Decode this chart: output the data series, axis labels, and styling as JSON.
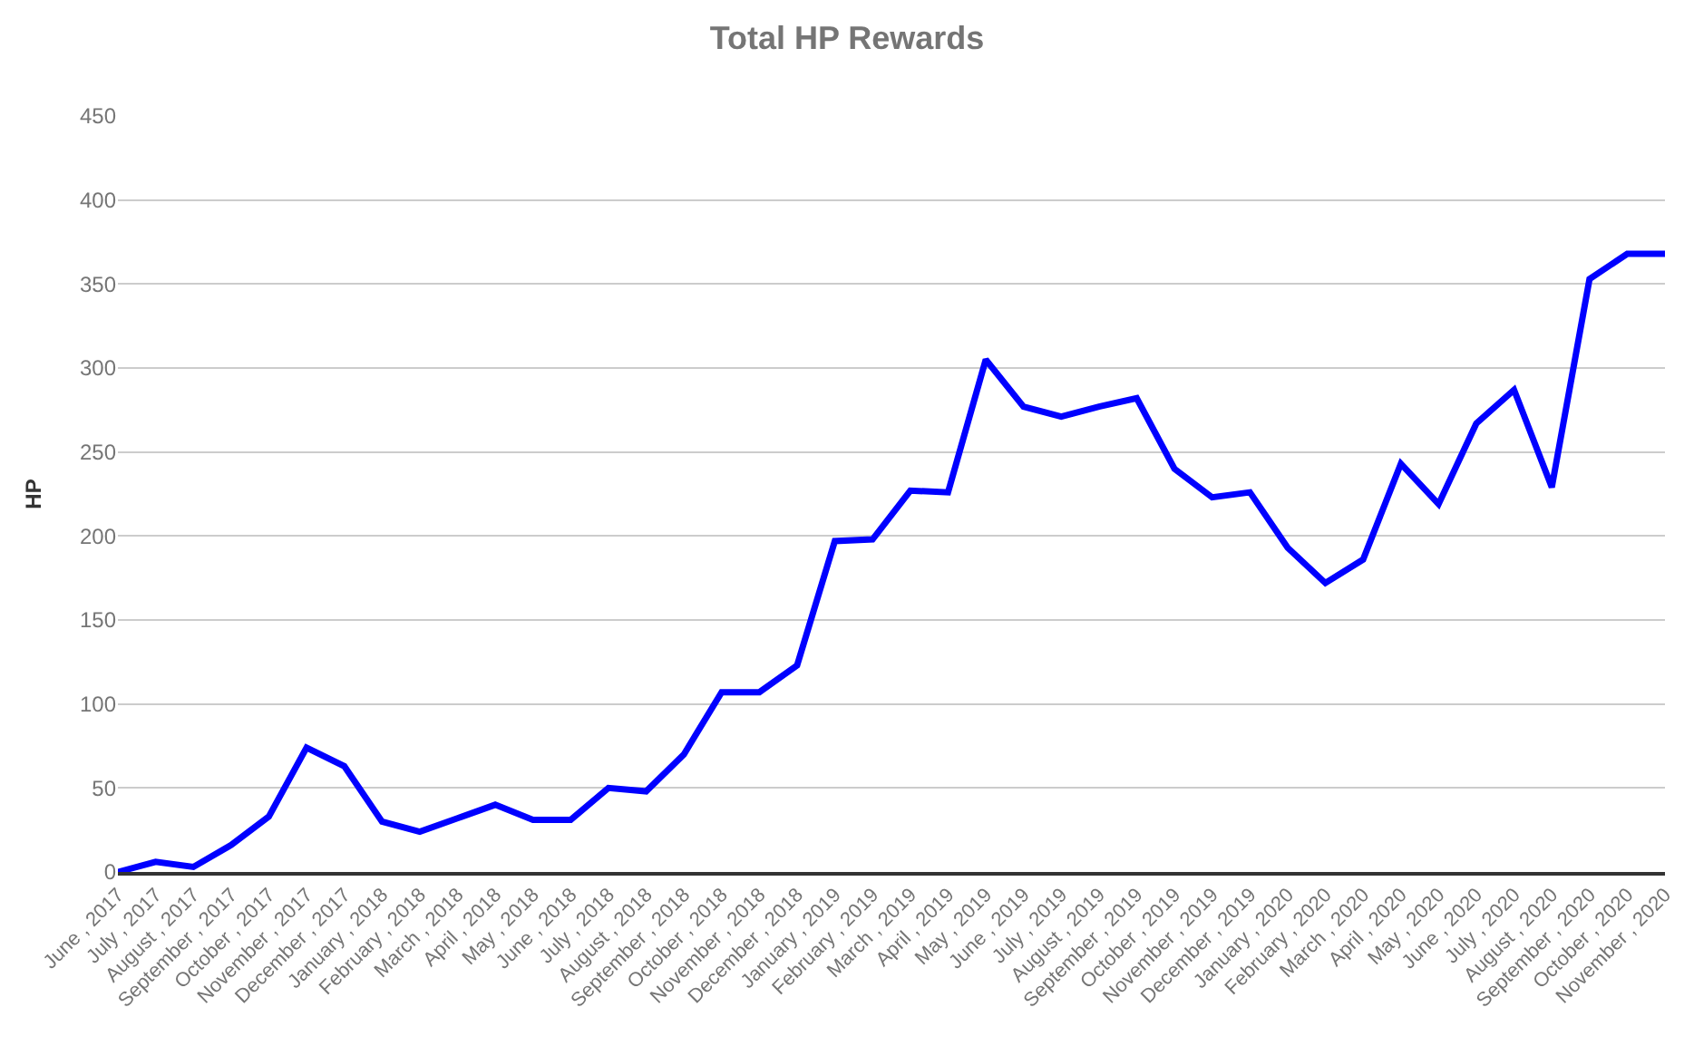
{
  "chart_data": {
    "type": "line",
    "title": "Total HP Rewards",
    "ylabel": "HP",
    "categories": [
      "June , 2017",
      "July , 2017",
      "August , 2017",
      "September , 2017",
      "October , 2017",
      "November , 2017",
      "December , 2017",
      "January , 2018",
      "February , 2018",
      "March , 2018",
      "April , 2018",
      "May , 2018",
      "June , 2018",
      "July , 2018",
      "August , 2018",
      "September , 2018",
      "October , 2018",
      "November , 2018",
      "December , 2018",
      "January , 2019",
      "February , 2019",
      "March , 2019",
      "April , 2019",
      "May , 2019",
      "June , 2019",
      "July , 2019",
      "August , 2019",
      "September , 2019",
      "October , 2019",
      "November , 2019",
      "December , 2019",
      "January , 2020",
      "February , 2020",
      "March , 2020",
      "April , 2020",
      "May , 2020",
      "June , 2020",
      "July , 2020",
      "August , 2020",
      "September , 2020",
      "October , 2020",
      "November , 2020"
    ],
    "series": [
      {
        "color": "#0000ff",
        "values": [
          0,
          6,
          3,
          16,
          33,
          74,
          63,
          30,
          24,
          32,
          40,
          31,
          31,
          50,
          48,
          70,
          107,
          107,
          123,
          197,
          198,
          227,
          226,
          305,
          277,
          271,
          277,
          282,
          240,
          223,
          226,
          193,
          172,
          186,
          243,
          219,
          267,
          287,
          229,
          353,
          368,
          368
        ]
      }
    ],
    "ylim": [
      0,
      450
    ],
    "yticks": [
      0,
      50,
      100,
      150,
      200,
      250,
      300,
      350,
      400,
      450
    ],
    "grid": "y",
    "marker": "none",
    "line_style": "solid"
  }
}
